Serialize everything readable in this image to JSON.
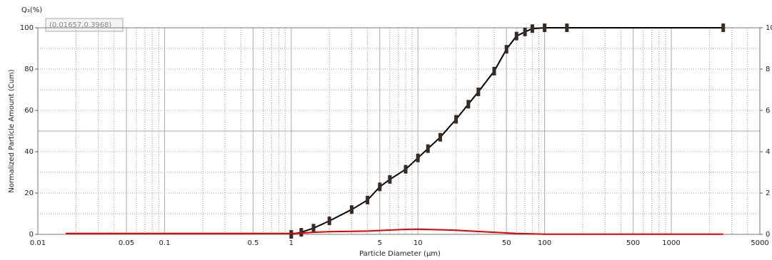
{
  "chart_data": {
    "type": "line",
    "title": "Q₃(%)",
    "tooltip": "(0.01657,0.3968)",
    "xlabel": "Particle Diameter (µm)",
    "ylabel": "Normalized Particle Amount (Cum)",
    "xscale": "log",
    "xlim": [
      0.01,
      5000
    ],
    "ylim": [
      0,
      100
    ],
    "y2lim": [
      0,
      100
    ],
    "xticks": [
      0.01,
      0.05,
      0.1,
      0.5,
      1,
      5,
      10,
      50,
      100,
      500,
      1000,
      5000
    ],
    "yticks": [
      0,
      20,
      40,
      60,
      80,
      100
    ],
    "y2ticks": [
      {
        "value": 0,
        "label": "0"
      },
      {
        "value": 20,
        "label": "2"
      },
      {
        "value": 40,
        "label": "4"
      },
      {
        "value": 60,
        "label": "6"
      },
      {
        "value": 80,
        "label": "8"
      },
      {
        "value": 100,
        "label": "10"
      }
    ],
    "x_minor_grid": [
      0.02,
      0.03,
      0.04,
      0.06,
      0.07,
      0.08,
      0.09,
      0.2,
      0.3,
      0.4,
      0.6,
      0.7,
      0.8,
      0.9,
      2,
      3,
      4,
      6,
      7,
      8,
      9,
      20,
      30,
      40,
      60,
      70,
      80,
      90,
      200,
      300,
      400,
      600,
      700,
      800,
      900,
      2000,
      3000,
      4000
    ],
    "y_minor_grid": [
      10,
      30,
      50,
      70,
      90
    ],
    "grid": true,
    "series": [
      {
        "color": "#000000",
        "markers": true,
        "x": [
          1,
          1.2,
          1.5,
          2,
          3,
          4,
          5,
          6,
          8,
          10,
          12,
          15,
          20,
          25,
          30,
          40,
          50,
          60,
          70,
          80,
          100,
          150,
          2570
        ],
        "values": [
          0,
          1,
          3,
          6.5,
          12,
          16.6,
          23,
          26.6,
          31.5,
          37,
          41.5,
          47,
          55.7,
          63,
          69,
          79,
          89.6,
          96,
          98,
          99.6,
          100,
          100,
          100
        ]
      },
      {
        "color": "#e00000",
        "markers": false,
        "x": [
          0.01657,
          1,
          1.2,
          1.5,
          2,
          4,
          8,
          10,
          20,
          40,
          60,
          100,
          2570
        ],
        "values": [
          0.3968,
          0.3968,
          0.6,
          1,
          1.3,
          1.6,
          2.4,
          2.5,
          2,
          1,
          0.4,
          0.1,
          0.1
        ]
      }
    ]
  }
}
